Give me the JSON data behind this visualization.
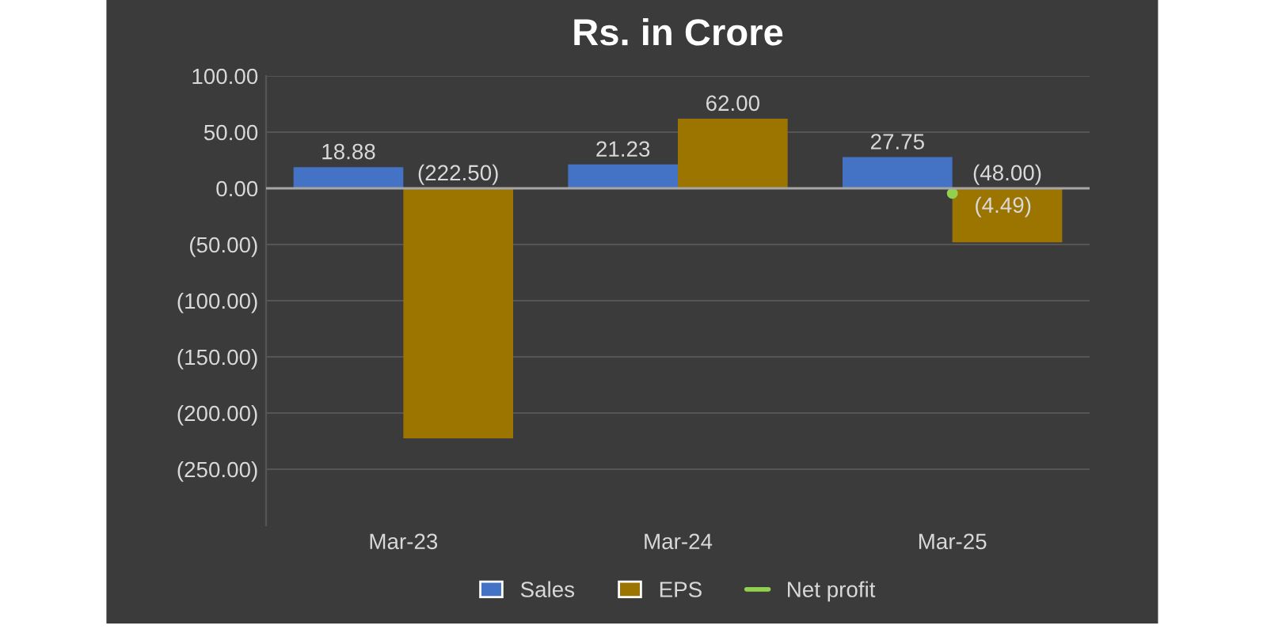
{
  "chart_data": {
    "type": "bar",
    "title": "Rs. in Crore",
    "categories": [
      "Mar-23",
      "Mar-24",
      "Mar-25"
    ],
    "series": [
      {
        "name": "Sales",
        "color": "#4472c4",
        "values": [
          18.88,
          21.23,
          27.75
        ],
        "value_labels": [
          "18.88",
          "21.23",
          "27.75"
        ]
      },
      {
        "name": "EPS",
        "color": "#9c7400",
        "values": [
          -222.5,
          62.0,
          -48.0
        ],
        "value_labels": [
          "(222.50)",
          "62.00",
          "(48.00)"
        ]
      },
      {
        "name": "Net profit",
        "type": "line",
        "color": "#92d050",
        "marker": "circle",
        "values": [
          null,
          null,
          -4.49
        ],
        "value_labels": [
          null,
          null,
          "(4.49)"
        ]
      }
    ],
    "ylim": [
      -300,
      100
    ],
    "yticks": [
      {
        "value": 100,
        "label": "100.00"
      },
      {
        "value": 50,
        "label": "50.00"
      },
      {
        "value": 0,
        "label": "0.00"
      },
      {
        "value": -50,
        "label": "(50.00)"
      },
      {
        "value": -100,
        "label": "(100.00)"
      },
      {
        "value": -150,
        "label": "(150.00)"
      },
      {
        "value": -200,
        "label": "(200.00)"
      },
      {
        "value": -250,
        "label": "(250.00)"
      }
    ],
    "grid": "y",
    "legend": "bottom"
  }
}
